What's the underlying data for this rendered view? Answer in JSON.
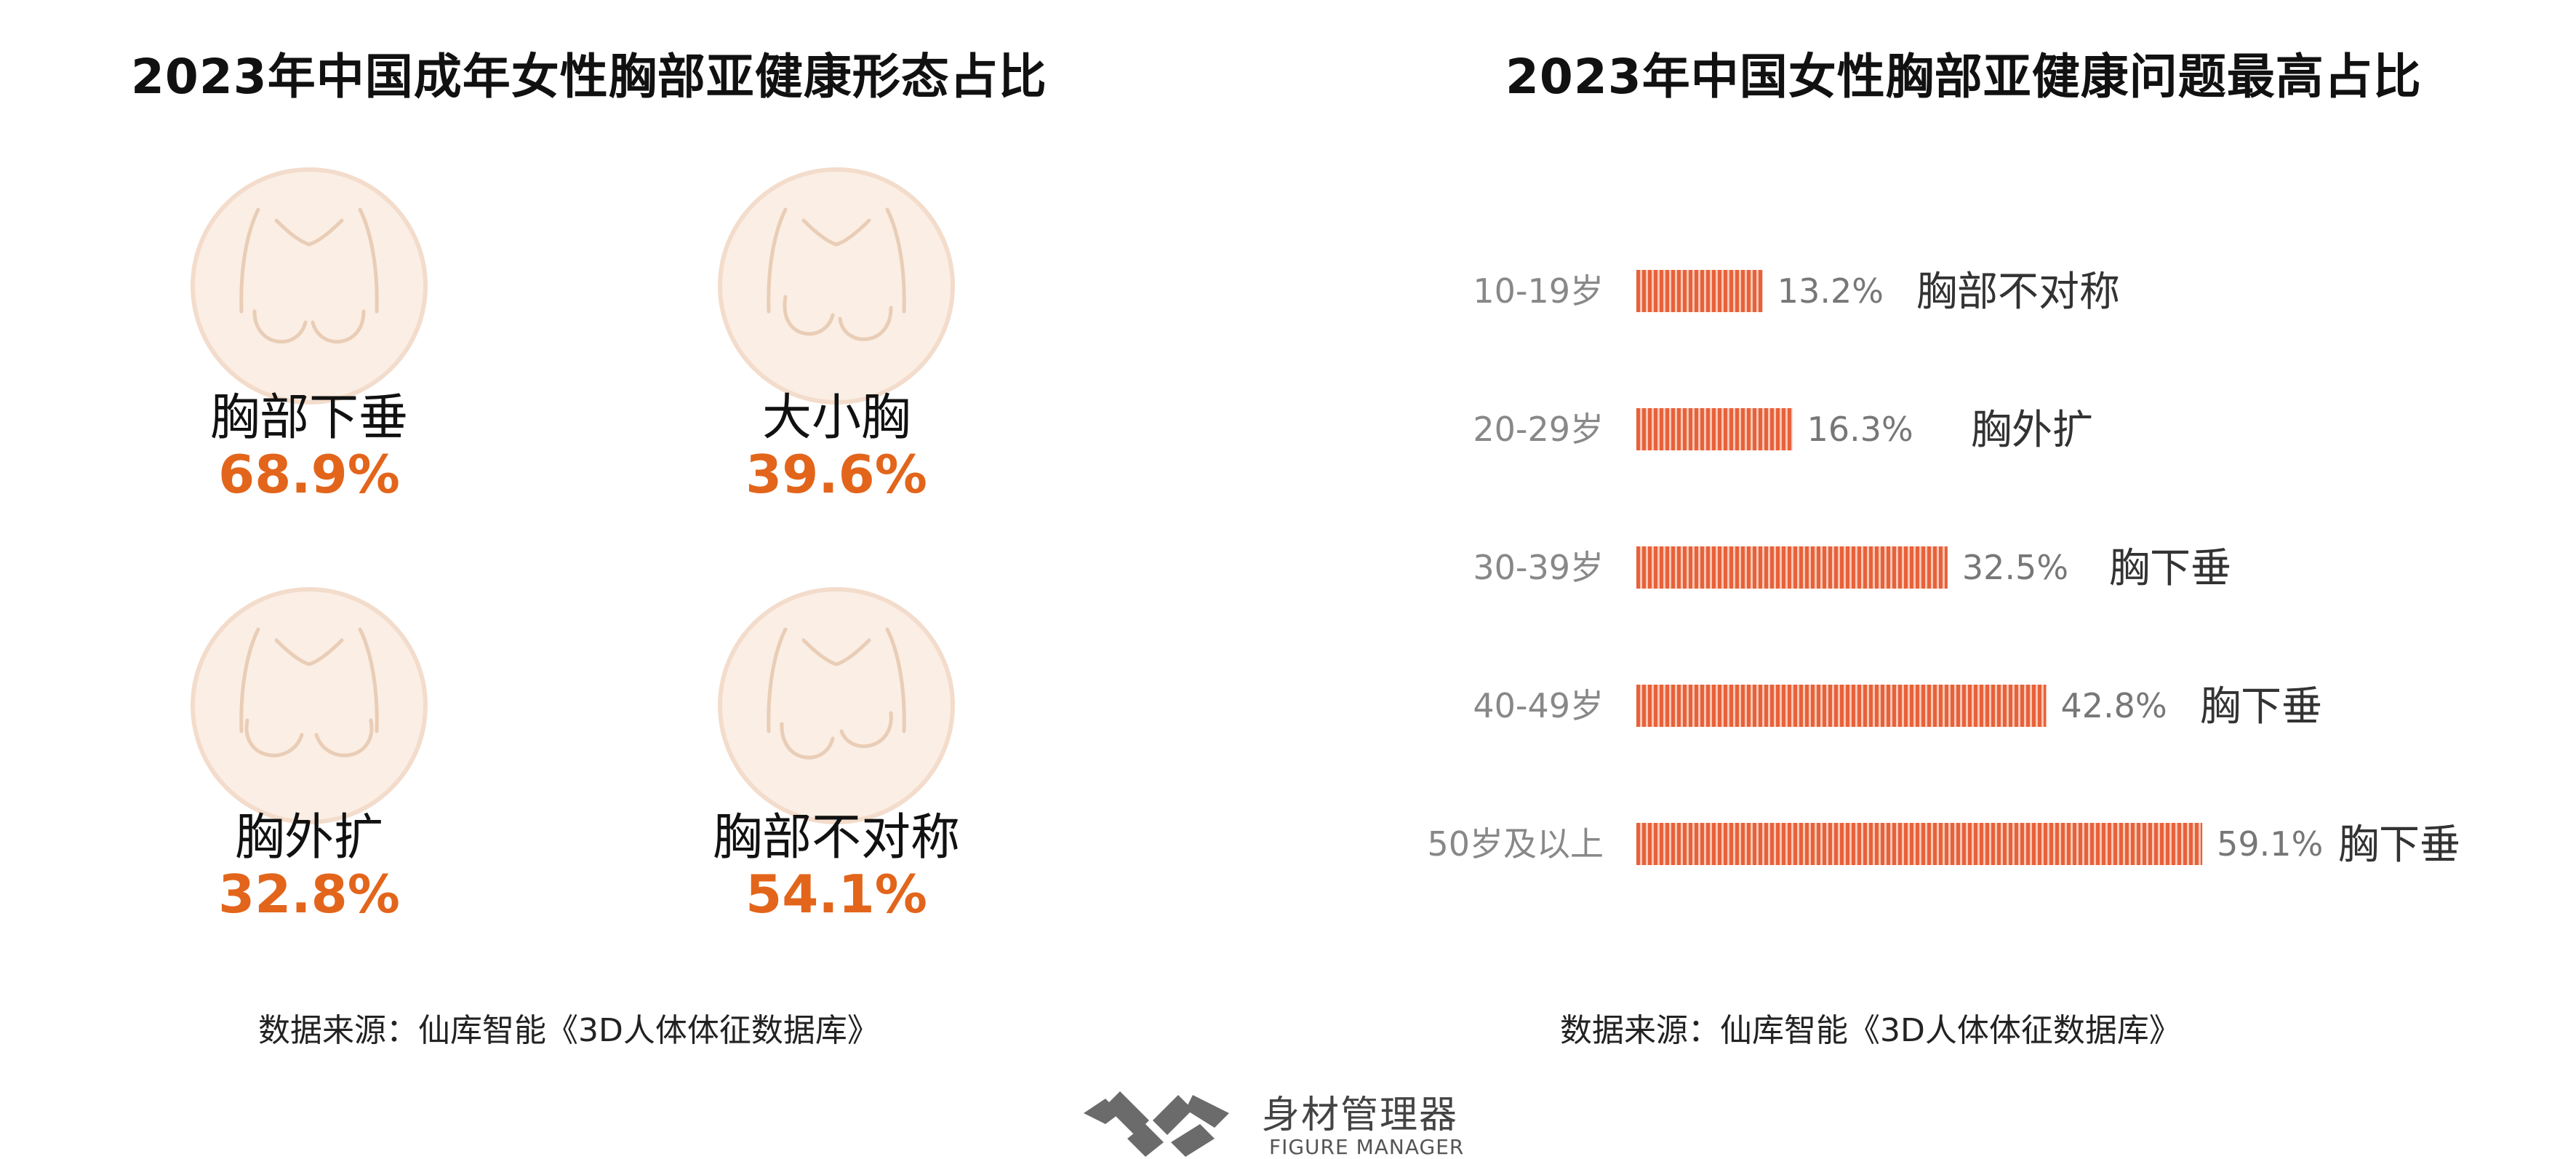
{
  "left_panel": {
    "title": "2023年中国成年女性胸部亚健康形态占比",
    "items": [
      {
        "label": "胸部下垂",
        "value": "68.9%",
        "icon": "chest-outline-icon"
      },
      {
        "label": "大小胸",
        "value": "39.6%",
        "icon": "chest-outline-icon"
      },
      {
        "label": "胸外扩",
        "value": "32.8%",
        "icon": "chest-outline-icon"
      },
      {
        "label": "胸部不对称",
        "value": "54.1%",
        "icon": "chest-outline-icon"
      }
    ],
    "source": "数据来源：仙库智能《3D人体体征数据库》"
  },
  "right_panel": {
    "title": "2023年中国女性胸部亚健康问题最高占比",
    "source": "数据来源：仙库智能《3D人体体征数据库》"
  },
  "chart_data": [
    {
      "type": "bar",
      "orientation": "horizontal",
      "title": "2023年中国女性胸部亚健康问题最高占比",
      "categories": [
        "10-19岁",
        "20-29岁",
        "30-39岁",
        "40-49岁",
        "50岁及以上"
      ],
      "values": [
        13.2,
        16.3,
        32.5,
        42.8,
        59.1
      ],
      "value_labels": [
        "13.2%",
        "16.3%",
        "32.5%",
        "42.8%",
        "59.1%"
      ],
      "issue_labels": [
        "胸部不对称",
        "胸外扩",
        "胸下垂",
        "胸下垂",
        "胸下垂"
      ],
      "unit": "%",
      "bar_color": "#E8613A",
      "grid": false,
      "legend": "none"
    }
  ],
  "colors": {
    "accent": "#E2651B",
    "bar": "#E8613A",
    "icon_circle": "#F7E5D8"
  },
  "logo": {
    "text_cn": "身材管理器",
    "text_en": "FIGURE MANAGER"
  }
}
